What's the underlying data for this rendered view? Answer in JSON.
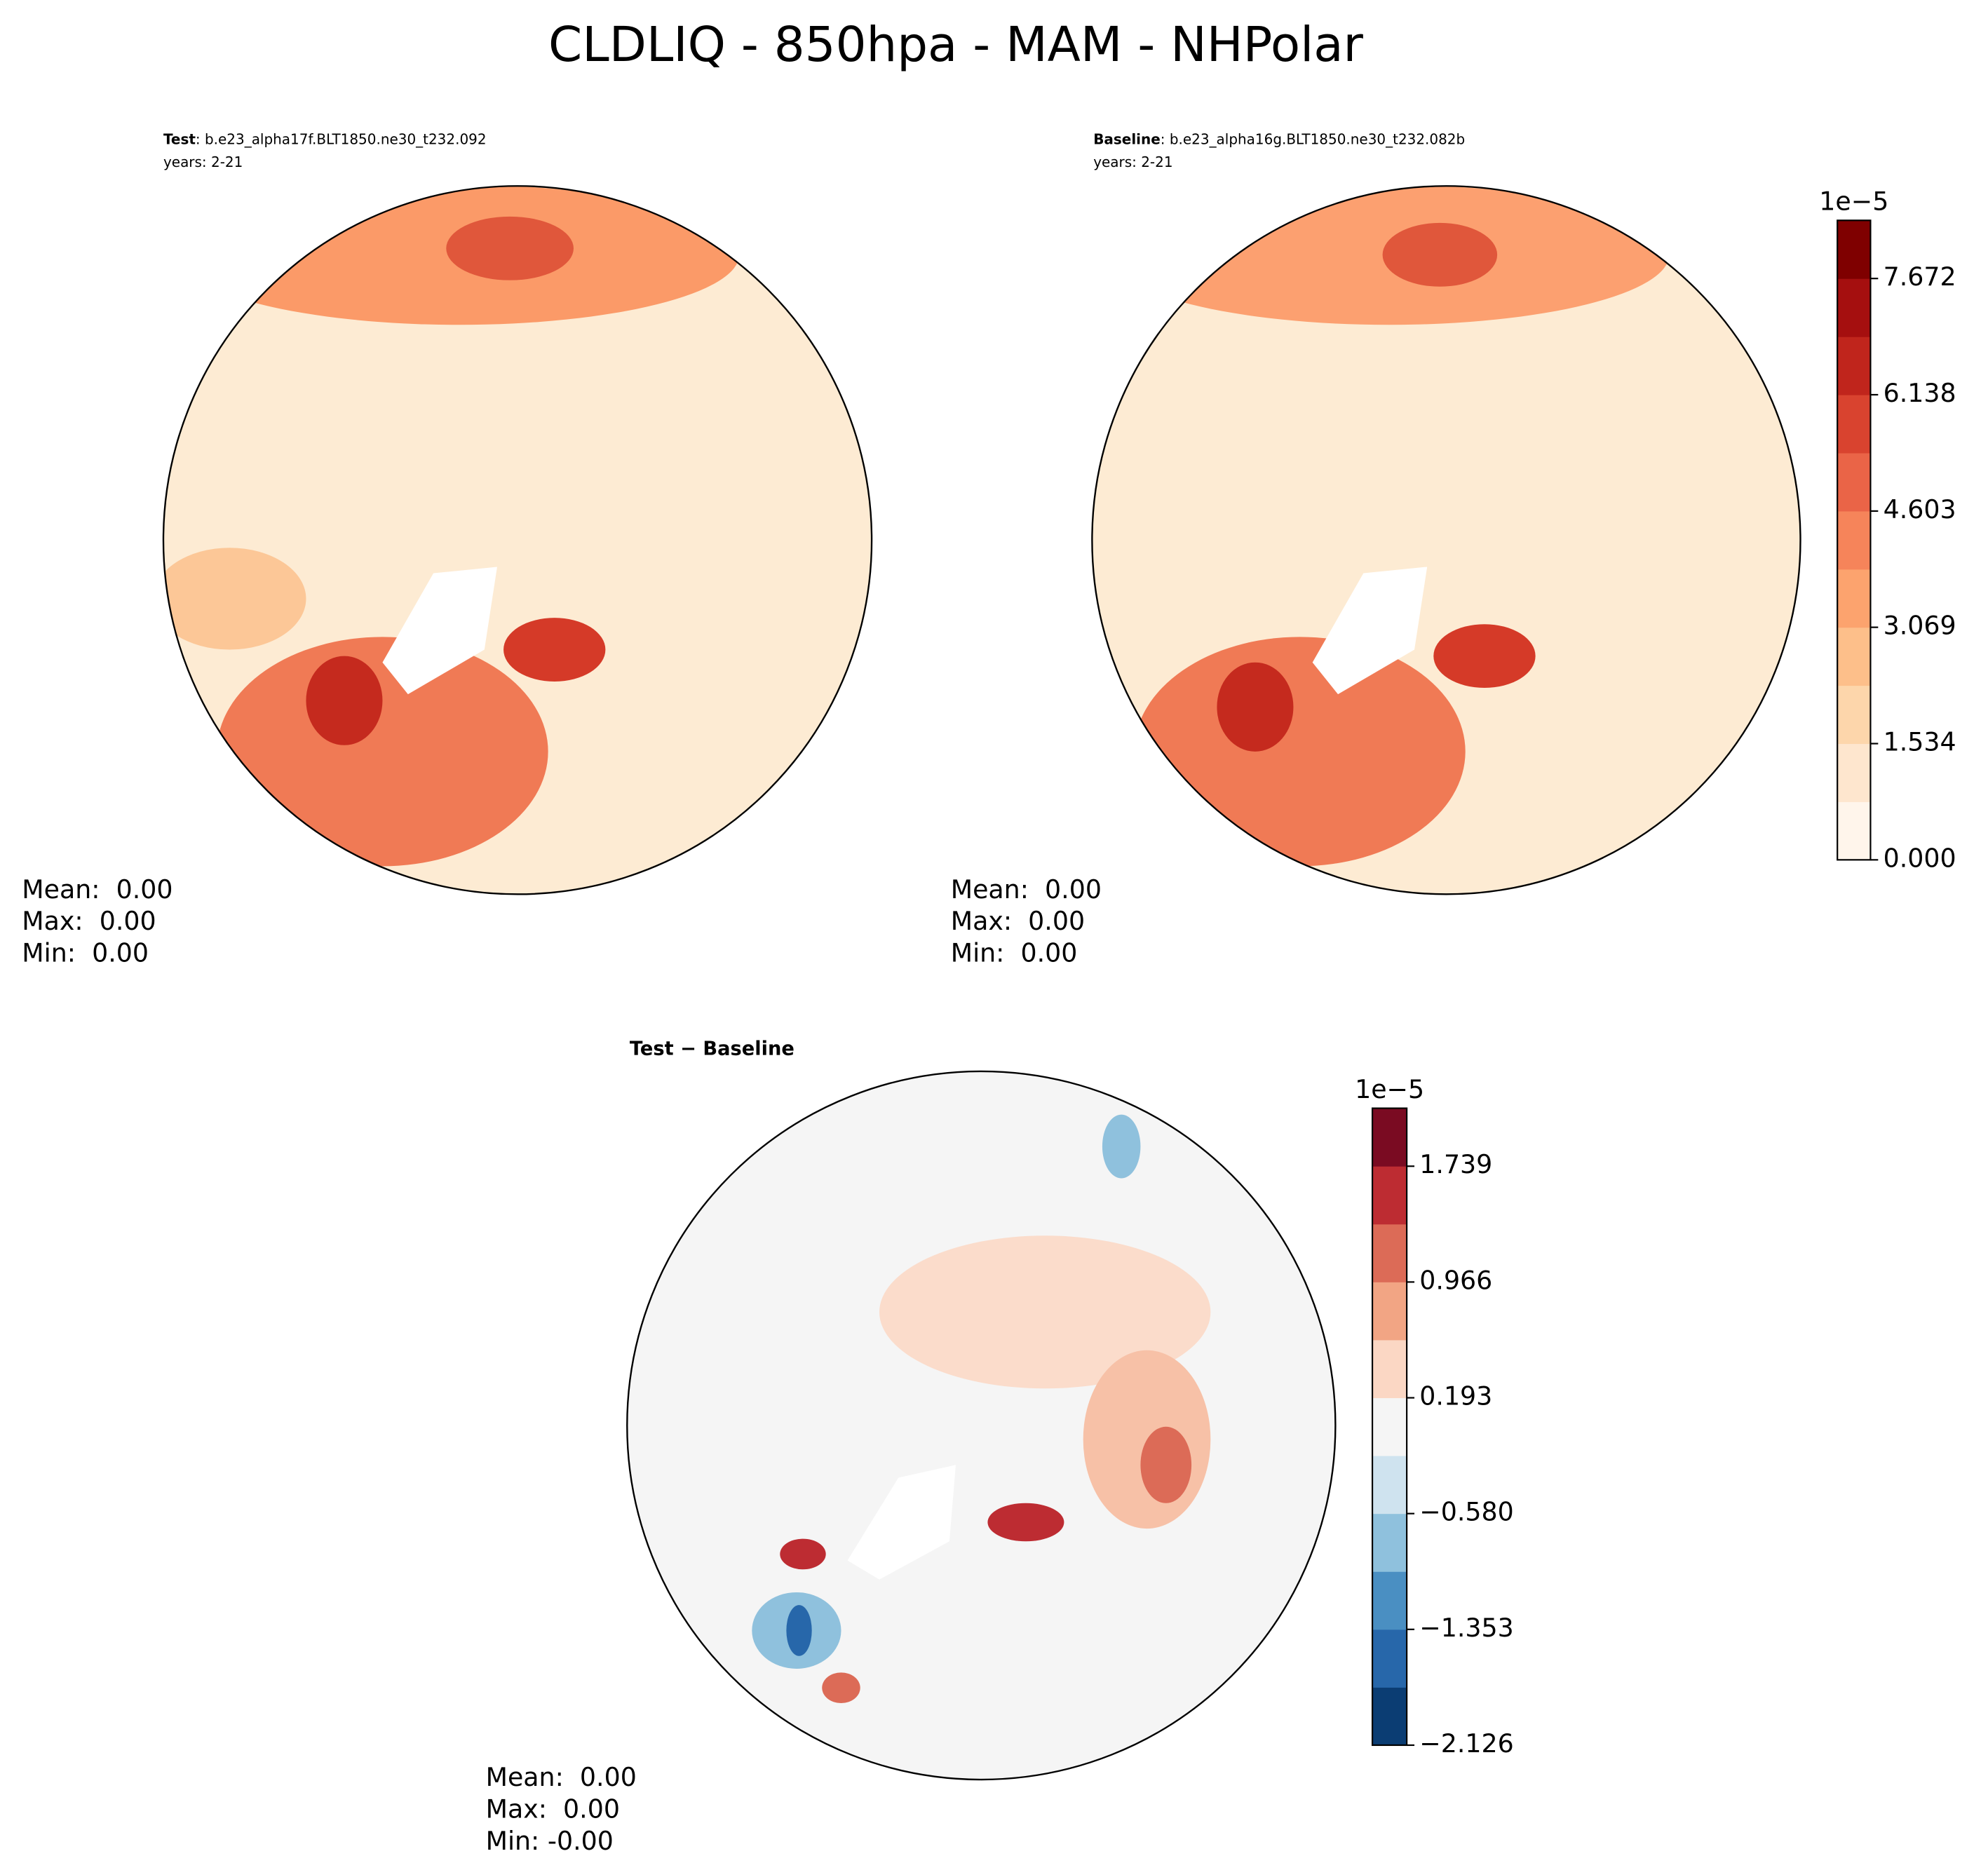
{
  "title": "CLDLIQ - 850hpa - MAM - NHPolar",
  "chart_data": [
    {
      "type": "contour",
      "label": "Test",
      "case": ": b.e23_alpha17f.BLT1850.ne30_t232.092",
      "years": "years: 2-21",
      "stats": [
        "Mean:  0.00",
        "Max:  0.00",
        "Min:  0.00"
      ]
    },
    {
      "type": "contour",
      "label": "Baseline",
      "case": ": b.e23_alpha16g.BLT1850.ne30_t232.082b",
      "years": "years: 2-21",
      "stats": [
        "Mean:  0.00",
        "Max:  0.00",
        "Min:  0.00"
      ],
      "colorbar": {
        "scale_label": "1e−5",
        "lim": [
          0,
          8.439
        ],
        "colors": [
          "#fff5eb",
          "#fee6ce",
          "#fdd6ab",
          "#fdbf8a",
          "#fca36e",
          "#f6845a",
          "#ea6447",
          "#d9432f",
          "#c0251c",
          "#a50f0f",
          "#7f0000"
        ],
        "ticks": [
          {
            "value": 0,
            "label": "0.000"
          },
          1.534,
          3.069,
          4.603,
          6.138,
          7.672
        ]
      }
    },
    {
      "type": "contour",
      "title": "Test − Baseline",
      "stats": [
        "Mean:  0.00",
        "Max:  0.00",
        "Min: -0.00"
      ],
      "colorbar": {
        "scale_label": "1e−5",
        "lim": [
          -2.126,
          2.126
        ],
        "colors": [
          "#0b3d73",
          "#2767aa",
          "#4a8fc2",
          "#8fc1dd",
          "#cfe3ef",
          "#f5f5f5",
          "#fbd7c4",
          "#f2a584",
          "#dc6b57",
          "#bd2c32",
          "#7a0b22"
        ],
        "ticks": [
          {
            "value": -2.126,
            "label": "−2.126"
          },
          {
            "value": -1.353,
            "label": "−1.353"
          },
          {
            "value": -0.58,
            "label": "−0.580"
          },
          0.193,
          0.966,
          1.739
        ]
      }
    }
  ]
}
